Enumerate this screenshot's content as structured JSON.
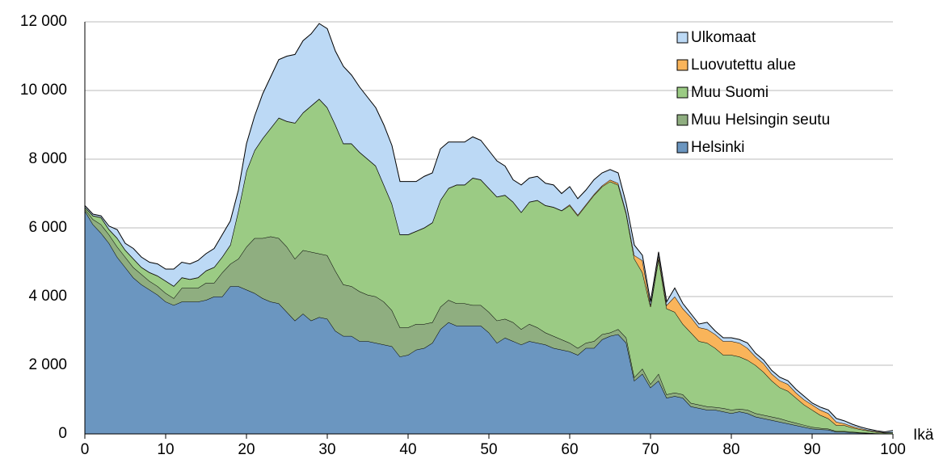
{
  "chart_data": {
    "type": "stacked_area",
    "xlabel": "Ikä",
    "x": [
      0,
      1,
      2,
      3,
      4,
      5,
      6,
      7,
      8,
      9,
      10,
      11,
      12,
      13,
      14,
      15,
      16,
      17,
      18,
      19,
      20,
      21,
      22,
      23,
      24,
      25,
      26,
      27,
      28,
      29,
      30,
      31,
      32,
      33,
      34,
      35,
      36,
      37,
      38,
      39,
      40,
      41,
      42,
      43,
      44,
      45,
      46,
      47,
      48,
      49,
      50,
      51,
      52,
      53,
      54,
      55,
      56,
      57,
      58,
      59,
      60,
      61,
      62,
      63,
      64,
      65,
      66,
      67,
      68,
      69,
      70,
      71,
      72,
      73,
      74,
      75,
      76,
      77,
      78,
      79,
      80,
      81,
      82,
      83,
      84,
      85,
      86,
      87,
      88,
      89,
      90,
      91,
      92,
      93,
      94,
      95,
      96,
      97,
      98,
      99,
      100
    ],
    "xlim": [
      0,
      100
    ],
    "xticks": [
      0,
      10,
      20,
      30,
      40,
      50,
      60,
      70,
      80,
      90,
      100
    ],
    "ylim": [
      0,
      12000
    ],
    "yticks": [
      0,
      {
        "value": 2000,
        "label": "2 000"
      },
      {
        "value": 4000,
        "label": "4 000"
      },
      {
        "value": 6000,
        "label": "6 000"
      },
      {
        "value": 8000,
        "label": "8 000"
      },
      {
        "value": 10000,
        "label": "10 000"
      },
      {
        "value": 12000,
        "label": "12 000"
      }
    ],
    "grid": true,
    "legend": "upper right",
    "series": [
      {
        "name": "Helsinki",
        "color": "#6b96c0",
        "values": [
          6500,
          6100,
          5850,
          5550,
          5150,
          4850,
          4550,
          4350,
          4200,
          4050,
          3850,
          3750,
          3850,
          3850,
          3850,
          3900,
          4000,
          4000,
          4300,
          4300,
          4200,
          4100,
          3950,
          3850,
          3800,
          3550,
          3300,
          3500,
          3300,
          3400,
          3350,
          3000,
          2850,
          2850,
          2700,
          2700,
          2650,
          2600,
          2550,
          2250,
          2300,
          2450,
          2500,
          2650,
          3050,
          3250,
          3150,
          3150,
          3150,
          3150,
          2950,
          2650,
          2800,
          2700,
          2600,
          2700,
          2650,
          2600,
          2500,
          2450,
          2400,
          2300,
          2500,
          2500,
          2750,
          2850,
          2900,
          2650,
          1550,
          1750,
          1350,
          1550,
          1050,
          1100,
          1050,
          800,
          750,
          700,
          700,
          650,
          600,
          650,
          600,
          500,
          450,
          400,
          350,
          300,
          250,
          200,
          150,
          130,
          120,
          60,
          60,
          40,
          30,
          20,
          10,
          5,
          5
        ]
      },
      {
        "name": "Muu Helsingin seutu",
        "color": "#8fae80",
        "values": [
          50,
          150,
          250,
          250,
          300,
          300,
          300,
          300,
          250,
          250,
          250,
          200,
          400,
          400,
          400,
          500,
          400,
          700,
          650,
          800,
          1250,
          1600,
          1750,
          1900,
          1900,
          1900,
          1800,
          1850,
          2000,
          1850,
          1850,
          1750,
          1500,
          1450,
          1450,
          1350,
          1350,
          1250,
          1050,
          850,
          800,
          750,
          700,
          600,
          650,
          650,
          650,
          650,
          600,
          600,
          600,
          650,
          550,
          550,
          450,
          500,
          450,
          350,
          350,
          300,
          250,
          200,
          150,
          200,
          150,
          100,
          150,
          150,
          100,
          150,
          100,
          200,
          100,
          100,
          100,
          100,
          100,
          100,
          80,
          100,
          100,
          80,
          100,
          100,
          100,
          100,
          100,
          80,
          70,
          60,
          50,
          40,
          30,
          20,
          20,
          20,
          10,
          10,
          5,
          5,
          3
        ]
      },
      {
        "name": "Muu Suomi",
        "color": "#9bcb84",
        "values": [
          50,
          100,
          200,
          150,
          250,
          200,
          250,
          200,
          250,
          300,
          350,
          350,
          300,
          250,
          300,
          350,
          450,
          450,
          550,
          1400,
          2200,
          2550,
          2900,
          3150,
          3500,
          3650,
          3950,
          4000,
          4250,
          4500,
          4300,
          4250,
          4100,
          4150,
          4050,
          3950,
          3800,
          3400,
          3100,
          2700,
          2700,
          2700,
          2800,
          2900,
          3100,
          3250,
          3450,
          3450,
          3700,
          3650,
          3600,
          3600,
          3600,
          3500,
          3400,
          3550,
          3700,
          3700,
          3750,
          3750,
          4000,
          3850,
          4000,
          4250,
          4300,
          4400,
          4200,
          3600,
          3450,
          2800,
          2250,
          3350,
          2500,
          2350,
          2050,
          2050,
          1850,
          1850,
          1720,
          1550,
          1600,
          1520,
          1450,
          1400,
          1250,
          1050,
          900,
          870,
          730,
          590,
          500,
          380,
          300,
          170,
          170,
          120,
          90,
          60,
          35,
          20,
          32
        ]
      },
      {
        "name": "Luovutettu alue",
        "color": "#f9b45a",
        "values": [
          10,
          10,
          10,
          10,
          10,
          10,
          10,
          10,
          10,
          10,
          10,
          10,
          10,
          10,
          10,
          10,
          10,
          10,
          10,
          10,
          10,
          10,
          10,
          10,
          10,
          10,
          10,
          10,
          10,
          10,
          10,
          10,
          10,
          10,
          10,
          10,
          10,
          10,
          10,
          10,
          10,
          10,
          10,
          10,
          10,
          10,
          10,
          10,
          10,
          10,
          10,
          10,
          10,
          10,
          10,
          10,
          10,
          10,
          10,
          10,
          30,
          30,
          30,
          30,
          30,
          50,
          50,
          50,
          100,
          350,
          50,
          100,
          100,
          450,
          450,
          450,
          400,
          400,
          400,
          400,
          400,
          400,
          350,
          250,
          250,
          200,
          200,
          200,
          150,
          150,
          150,
          150,
          150,
          100,
          50,
          40,
          30,
          20,
          20,
          10,
          10
        ]
      },
      {
        "name": "Ulkomaat",
        "color": "#bcd9f5",
        "values": [
          40,
          40,
          40,
          90,
          240,
          190,
          290,
          290,
          290,
          340,
          340,
          490,
          440,
          440,
          490,
          490,
          540,
          640,
          690,
          590,
          790,
          990,
          1290,
          1490,
          1690,
          1890,
          1990,
          2090,
          2090,
          2190,
          2290,
          2140,
          2240,
          1990,
          1890,
          1790,
          1690,
          1740,
          1690,
          1540,
          1540,
          1440,
          1490,
          1440,
          1490,
          1340,
          1240,
          1240,
          1190,
          1140,
          1090,
          1040,
          840,
          640,
          790,
          690,
          690,
          640,
          640,
          490,
          520,
          470,
          420,
          420,
          370,
          300,
          300,
          250,
          300,
          150,
          100,
          100,
          100,
          250,
          150,
          100,
          100,
          200,
          100,
          100,
          100,
          100,
          150,
          100,
          100,
          100,
          100,
          100,
          100,
          100,
          50,
          80,
          100,
          100,
          80,
          60,
          40,
          30,
          20,
          20,
          50
        ]
      }
    ]
  }
}
